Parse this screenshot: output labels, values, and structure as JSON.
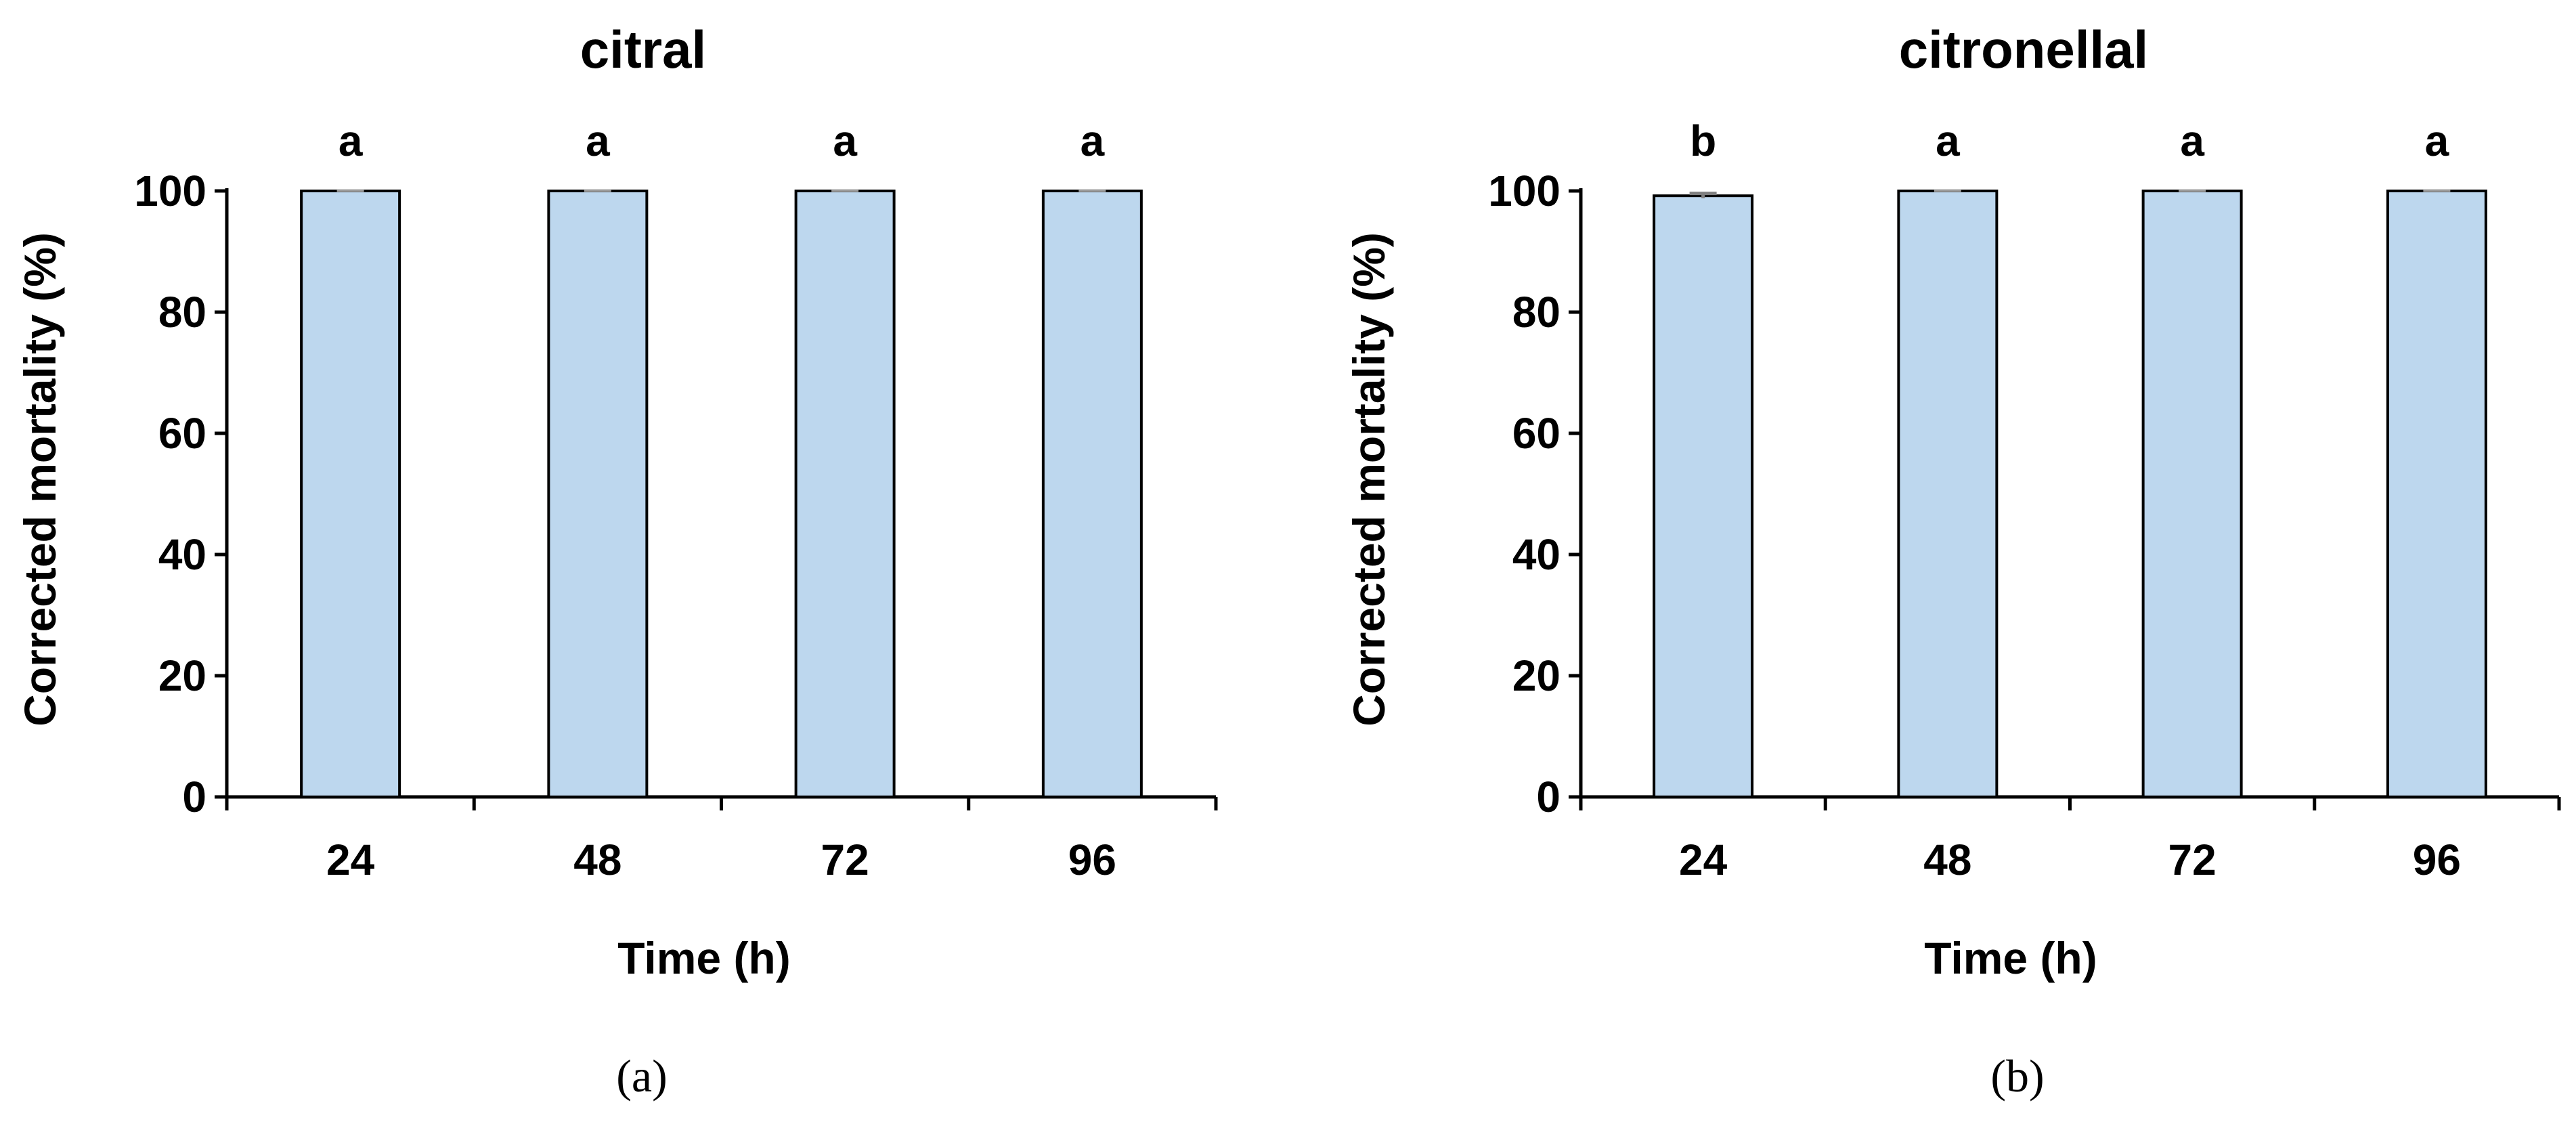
{
  "chart_data": [
    {
      "type": "bar",
      "title": "citral",
      "xlabel": "Time (h)",
      "ylabel": "Corrected mortality (%)",
      "categories": [
        "24",
        "48",
        "72",
        "96"
      ],
      "values": [
        100,
        100,
        100,
        100
      ],
      "error": [
        0,
        0,
        0,
        0
      ],
      "significance_letters": [
        "a",
        "a",
        "a",
        "a"
      ],
      "yticks": [
        "0",
        "20",
        "40",
        "60",
        "80",
        "100"
      ],
      "ylim": [
        0,
        100
      ],
      "grid": false,
      "legend": "none",
      "panel_label": "(a)",
      "bar_color": "#bdd7ee",
      "bar_edge_color": "#000000"
    },
    {
      "type": "bar",
      "title": "citronellal",
      "xlabel": "Time (h)",
      "ylabel": "Corrected mortality (%)",
      "categories": [
        "24",
        "48",
        "72",
        "96"
      ],
      "values": [
        99.2,
        100,
        100,
        100
      ],
      "error": [
        0.4,
        0,
        0,
        0
      ],
      "significance_letters": [
        "b",
        "a",
        "a",
        "a"
      ],
      "yticks": [
        "0",
        "20",
        "40",
        "60",
        "80",
        "100"
      ],
      "ylim": [
        0,
        100
      ],
      "grid": false,
      "legend": "none",
      "panel_label": "(b)",
      "bar_color": "#bdd7ee",
      "bar_edge_color": "#000000"
    }
  ]
}
